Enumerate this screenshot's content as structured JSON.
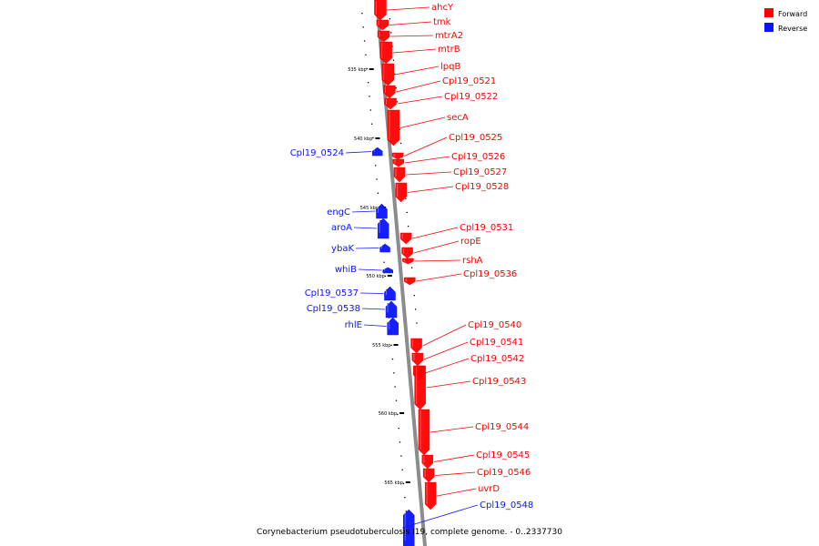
{
  "colors": {
    "forward": "#ff0000",
    "reverse": "#0a14ff",
    "backbone": "#8c8c8c"
  },
  "legend": [
    {
      "label": "Forward",
      "strand": "forward"
    },
    {
      "label": "Reverse",
      "strand": "reverse"
    }
  ],
  "caption": "Corynebacterium pseudotuberculosis I19, complete genome. - 0..2337730",
  "scale": [
    {
      "label": "535 kbp"
    },
    {
      "label": "540 kbp"
    },
    {
      "label": "545 kbp"
    },
    {
      "label": "550 kbp"
    },
    {
      "label": "555 kbp"
    },
    {
      "label": "560 kbp"
    },
    {
      "label": "565 kbp"
    }
  ],
  "genes": [
    {
      "name": "ahcY",
      "strand": "forward"
    },
    {
      "name": "tmk",
      "strand": "forward"
    },
    {
      "name": "mtrA2",
      "strand": "forward"
    },
    {
      "name": "mtrB",
      "strand": "forward"
    },
    {
      "name": "lpqB",
      "strand": "forward"
    },
    {
      "name": "Cpl19_0521",
      "strand": "forward"
    },
    {
      "name": "Cpl19_0522",
      "strand": "forward"
    },
    {
      "name": "secA",
      "strand": "forward"
    },
    {
      "name": "Cpl19_0524",
      "strand": "reverse"
    },
    {
      "name": "Cpl19_0525",
      "strand": "forward"
    },
    {
      "name": "Cpl19_0526",
      "strand": "forward"
    },
    {
      "name": "Cpl19_0527",
      "strand": "forward"
    },
    {
      "name": "Cpl19_0528",
      "strand": "forward"
    },
    {
      "name": "engC",
      "strand": "reverse"
    },
    {
      "name": "aroA",
      "strand": "reverse"
    },
    {
      "name": "Cpl19_0531",
      "strand": "forward"
    },
    {
      "name": "ropE",
      "strand": "forward"
    },
    {
      "name": "ybaK",
      "strand": "reverse"
    },
    {
      "name": "rshA",
      "strand": "forward"
    },
    {
      "name": "whiB",
      "strand": "reverse"
    },
    {
      "name": "Cpl19_0536",
      "strand": "forward"
    },
    {
      "name": "Cpl19_0537",
      "strand": "reverse"
    },
    {
      "name": "Cpl19_0538",
      "strand": "reverse"
    },
    {
      "name": "rhlE",
      "strand": "reverse"
    },
    {
      "name": "Cpl19_0540",
      "strand": "forward"
    },
    {
      "name": "Cpl19_0541",
      "strand": "forward"
    },
    {
      "name": "Cpl19_0542",
      "strand": "forward"
    },
    {
      "name": "Cpl19_0543",
      "strand": "forward"
    },
    {
      "name": "Cpl19_0544",
      "strand": "forward"
    },
    {
      "name": "Cpl19_0545",
      "strand": "forward"
    },
    {
      "name": "Cpl19_0546",
      "strand": "forward"
    },
    {
      "name": "uvrD",
      "strand": "forward"
    },
    {
      "name": "Cpl19_0548",
      "strand": "reverse"
    }
  ]
}
